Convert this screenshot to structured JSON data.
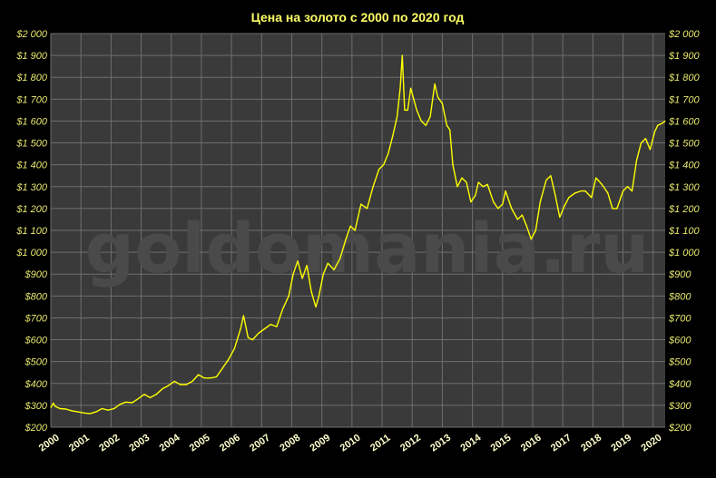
{
  "colors": {
    "background": "#000000",
    "plot_background": "#3a3a3a",
    "grid": "#6e6e6e",
    "line": "#ffff00",
    "title_text": "#ffff66",
    "axis_text": "#e6e66e",
    "year_text": "#ffffcc",
    "watermark": "#4a4a4a"
  },
  "chart_data": {
    "type": "line",
    "title": "Цена на золото с 2000 по 2020 год",
    "watermark": "goldomania.ru",
    "xlabel": "",
    "ylabel": "",
    "xlim": [
      2000,
      2020.4
    ],
    "ylim": [
      200,
      2000
    ],
    "grid": true,
    "legend": "none",
    "y_ticks": [
      {
        "value": 200,
        "label": "$200"
      },
      {
        "value": 300,
        "label": "$300"
      },
      {
        "value": 400,
        "label": "$400"
      },
      {
        "value": 500,
        "label": "$500"
      },
      {
        "value": 600,
        "label": "$600"
      },
      {
        "value": 700,
        "label": "$700"
      },
      {
        "value": 800,
        "label": "$800"
      },
      {
        "value": 900,
        "label": "$900"
      },
      {
        "value": 1000,
        "label": "$1 000"
      },
      {
        "value": 1100,
        "label": "$1 100"
      },
      {
        "value": 1200,
        "label": "$1 200"
      },
      {
        "value": 1300,
        "label": "$1 300"
      },
      {
        "value": 1400,
        "label": "$1 400"
      },
      {
        "value": 1500,
        "label": "$1 500"
      },
      {
        "value": 1600,
        "label": "$1 600"
      },
      {
        "value": 1700,
        "label": "$1 700"
      },
      {
        "value": 1800,
        "label": "$1 800"
      },
      {
        "value": 1900,
        "label": "$1 900"
      },
      {
        "value": 2000,
        "label": "$2 000"
      }
    ],
    "x_ticks": [
      {
        "value": 2000,
        "label": "2000"
      },
      {
        "value": 2001,
        "label": "2001"
      },
      {
        "value": 2002,
        "label": "2002"
      },
      {
        "value": 2003,
        "label": "2003"
      },
      {
        "value": 2004,
        "label": "2004"
      },
      {
        "value": 2005,
        "label": "2005"
      },
      {
        "value": 2006,
        "label": "2006"
      },
      {
        "value": 2007,
        "label": "2007"
      },
      {
        "value": 2008,
        "label": "2008"
      },
      {
        "value": 2009,
        "label": "2009"
      },
      {
        "value": 2010,
        "label": "2010"
      },
      {
        "value": 2011,
        "label": "2011"
      },
      {
        "value": 2012,
        "label": "2012"
      },
      {
        "value": 2013,
        "label": "2013"
      },
      {
        "value": 2014,
        "label": "2014"
      },
      {
        "value": 2015,
        "label": "2015"
      },
      {
        "value": 2016,
        "label": "2016"
      },
      {
        "value": 2017,
        "label": "2017"
      },
      {
        "value": 2018,
        "label": "2018"
      },
      {
        "value": 2019,
        "label": "2019"
      },
      {
        "value": 2020,
        "label": "2020"
      }
    ],
    "series": [
      {
        "x": [
          2000.0,
          2000.08,
          2000.15,
          2000.3,
          2000.5,
          2000.7,
          2000.9,
          2001.1,
          2001.3,
          2001.5,
          2001.7,
          2001.9,
          2002.1,
          2002.3,
          2002.5,
          2002.7,
          2002.9,
          2003.1,
          2003.3,
          2003.5,
          2003.7,
          2003.9,
          2004.1,
          2004.3,
          2004.5,
          2004.7,
          2004.9,
          2005.1,
          2005.3,
          2005.5,
          2005.7,
          2005.9,
          2006.1,
          2006.3,
          2006.4,
          2006.55,
          2006.7,
          2006.9,
          2007.1,
          2007.3,
          2007.5,
          2007.7,
          2007.9,
          2008.05,
          2008.2,
          2008.35,
          2008.5,
          2008.65,
          2008.8,
          2008.9,
          2009.05,
          2009.2,
          2009.4,
          2009.6,
          2009.8,
          2009.95,
          2010.1,
          2010.3,
          2010.5,
          2010.7,
          2010.9,
          2011.05,
          2011.2,
          2011.35,
          2011.5,
          2011.6,
          2011.67,
          2011.75,
          2011.85,
          2011.95,
          2012.05,
          2012.15,
          2012.3,
          2012.45,
          2012.6,
          2012.75,
          2012.85,
          2013.0,
          2013.15,
          2013.25,
          2013.35,
          2013.5,
          2013.65,
          2013.8,
          2013.95,
          2014.1,
          2014.2,
          2014.35,
          2014.5,
          2014.7,
          2014.85,
          2015.0,
          2015.1,
          2015.3,
          2015.5,
          2015.65,
          2015.8,
          2015.95,
          2016.1,
          2016.25,
          2016.45,
          2016.6,
          2016.75,
          2016.9,
          2017.05,
          2017.2,
          2017.4,
          2017.6,
          2017.75,
          2017.95,
          2018.1,
          2018.3,
          2018.5,
          2018.65,
          2018.8,
          2019.0,
          2019.15,
          2019.3,
          2019.45,
          2019.6,
          2019.75,
          2019.9,
          2020.05,
          2020.15,
          2020.3,
          2020.4
        ],
        "values": [
          290,
          310,
          295,
          285,
          283,
          275,
          270,
          265,
          262,
          270,
          285,
          278,
          285,
          305,
          315,
          312,
          330,
          350,
          335,
          350,
          375,
          390,
          410,
          395,
          395,
          410,
          440,
          425,
          425,
          430,
          470,
          510,
          560,
          650,
          710,
          610,
          600,
          630,
          650,
          670,
          660,
          740,
          800,
          900,
          960,
          880,
          940,
          820,
          750,
          800,
          900,
          950,
          920,
          970,
          1060,
          1120,
          1100,
          1220,
          1200,
          1300,
          1380,
          1400,
          1450,
          1530,
          1620,
          1750,
          1900,
          1650,
          1650,
          1750,
          1700,
          1650,
          1600,
          1580,
          1620,
          1770,
          1710,
          1680,
          1580,
          1560,
          1400,
          1300,
          1340,
          1320,
          1230,
          1260,
          1320,
          1300,
          1310,
          1230,
          1200,
          1220,
          1280,
          1200,
          1150,
          1170,
          1120,
          1060,
          1100,
          1230,
          1330,
          1350,
          1260,
          1160,
          1210,
          1250,
          1270,
          1280,
          1280,
          1250,
          1340,
          1310,
          1270,
          1200,
          1200,
          1280,
          1300,
          1280,
          1420,
          1500,
          1520,
          1470,
          1550,
          1580,
          1590,
          1600
        ]
      }
    ]
  }
}
